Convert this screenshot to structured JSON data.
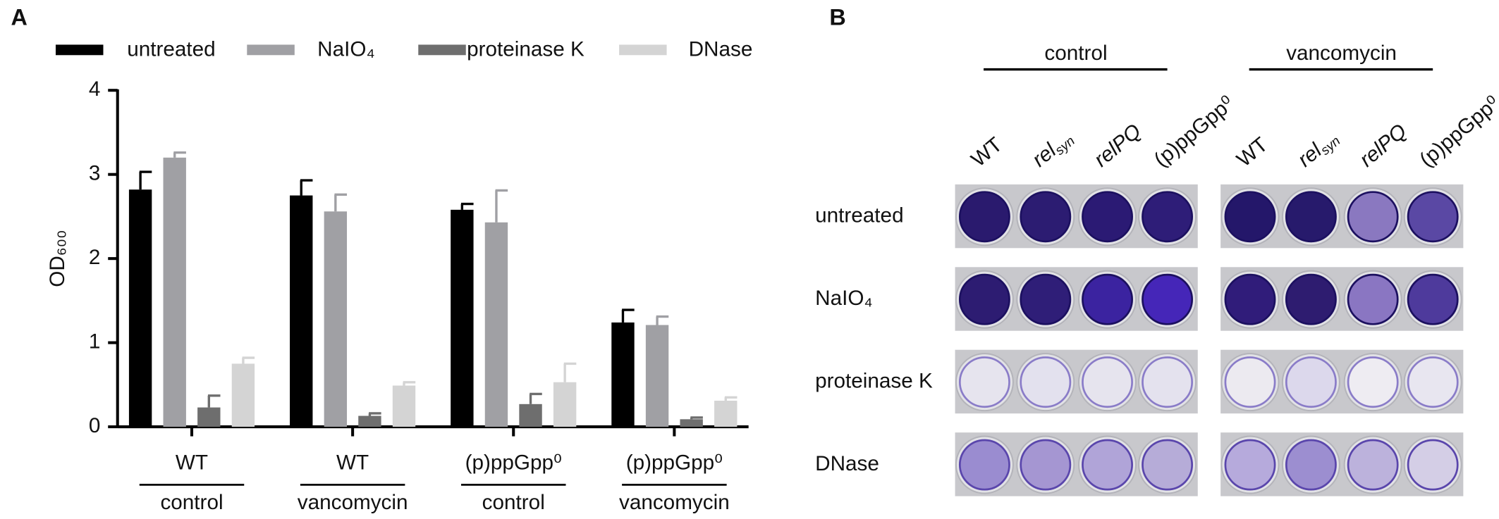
{
  "chart_data": {
    "type": "bar",
    "panel_label": "A",
    "y_label": "OD₆₀₀",
    "categories": [
      "WT",
      "WT",
      "(p)ppGpp⁰",
      "(p)ppGpp⁰"
    ],
    "groups": [
      "control",
      "vancomycin",
      "control",
      "vancomycin"
    ],
    "series": [
      {
        "name": "untreated",
        "color": "#000000",
        "values": [
          2.82,
          2.75,
          2.58,
          1.24
        ],
        "errors": [
          0.21,
          0.18,
          0.07,
          0.15
        ]
      },
      {
        "name": "NaIO₄",
        "color": "#a0a0a4",
        "values": [
          3.2,
          2.56,
          2.43,
          1.21
        ],
        "errors": [
          0.06,
          0.2,
          0.38,
          0.1
        ]
      },
      {
        "name": "proteinase K",
        "color": "#6e6e6e",
        "values": [
          0.23,
          0.13,
          0.27,
          0.09
        ],
        "errors": [
          0.14,
          0.03,
          0.12,
          0.02
        ]
      },
      {
        "name": "DNase",
        "color": "#d4d4d4",
        "values": [
          0.75,
          0.49,
          0.53,
          0.31
        ],
        "errors": [
          0.07,
          0.04,
          0.22,
          0.04
        ]
      }
    ],
    "ylim": [
      0,
      4
    ],
    "yticks": [
      0,
      1,
      2,
      3,
      4
    ]
  },
  "panel_b": {
    "panel_label": "B",
    "treatments": [
      "control",
      "vancomycin"
    ],
    "columns": [
      {
        "text": "WT"
      },
      {
        "text": "rel",
        "sub": "syn",
        "italic": true
      },
      {
        "text": "relPQ",
        "italic": true
      },
      {
        "text": "(p)ppGpp⁰"
      }
    ],
    "rows": [
      "untreated",
      "NaIO₄",
      "proteinase K",
      "DNase"
    ]
  }
}
